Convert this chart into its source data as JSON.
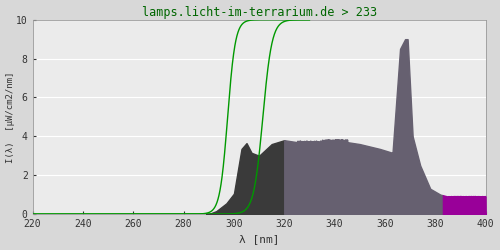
{
  "title": "lamps.licht-im-terrarium.de > 233",
  "xlabel": "λ [nm]",
  "ylabel": "I(λ)  [μW/cm2/nm]",
  "xlim": [
    220,
    400
  ],
  "ylim": [
    0,
    10
  ],
  "yticks": [
    0,
    2,
    4,
    6,
    8,
    10
  ],
  "xticks": [
    220,
    240,
    260,
    280,
    300,
    320,
    340,
    360,
    380,
    400
  ],
  "bg_color": "#d8d8d8",
  "plot_bg_color": "#ebebeb",
  "grid_color": "#ffffff",
  "title_color": "#006600",
  "line_color": "#009900",
  "color_uvb": "#3a3a3a",
  "color_uva": "#666070",
  "color_vis": "#990099",
  "uvb_end": 320,
  "uva_end": 383,
  "green1_start": 291,
  "green2_start": 305
}
